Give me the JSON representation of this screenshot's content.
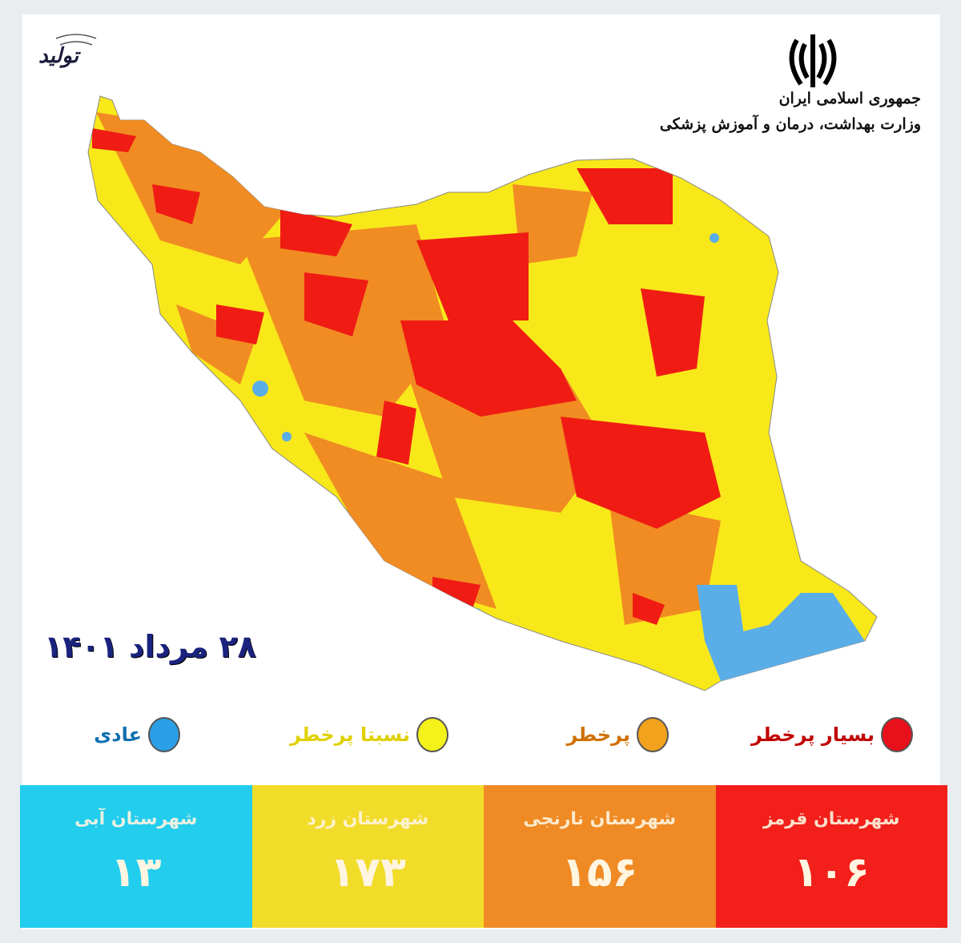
{
  "header": {
    "brand_logo_text": "تولید",
    "emblem": "iran-emblem",
    "ministry_line1": "جمهوری اسلامی ایران",
    "ministry_line2": "وزارت بهداشت، درمان و آموزش پزشکی"
  },
  "date": "۲۸ مرداد ۱۴۰۱",
  "colors": {
    "red": "#f01c14",
    "orange": "#f08c22",
    "yellow": "#f8e81a",
    "blue": "#5aaee8",
    "box_red": "#f21f1a",
    "box_orange": "#ef8a24",
    "box_yellow": "#f2dc2a",
    "box_blue": "#22cdee"
  },
  "legend": [
    {
      "label": "بسیار پرخطر",
      "color": "#e8101a",
      "text_color": "#c00000"
    },
    {
      "label": "پرخطر",
      "color": "#f2a21c",
      "text_color": "#d07000"
    },
    {
      "label": "نسبتا پرخطر",
      "color": "#f4f21a",
      "text_color": "#e0d000"
    },
    {
      "label": "عادی",
      "color": "#2a9fe8",
      "text_color": "#1070b0"
    }
  ],
  "stats": [
    {
      "label": "شهرستان قرمز",
      "count": "۱۰۶"
    },
    {
      "label": "شهرستان نارنجی",
      "count": "۱۵۶"
    },
    {
      "label": "شهرستان زرد",
      "count": "۱۷۳"
    },
    {
      "label": "شهرستان آبی",
      "count": "۱۳"
    }
  ]
}
